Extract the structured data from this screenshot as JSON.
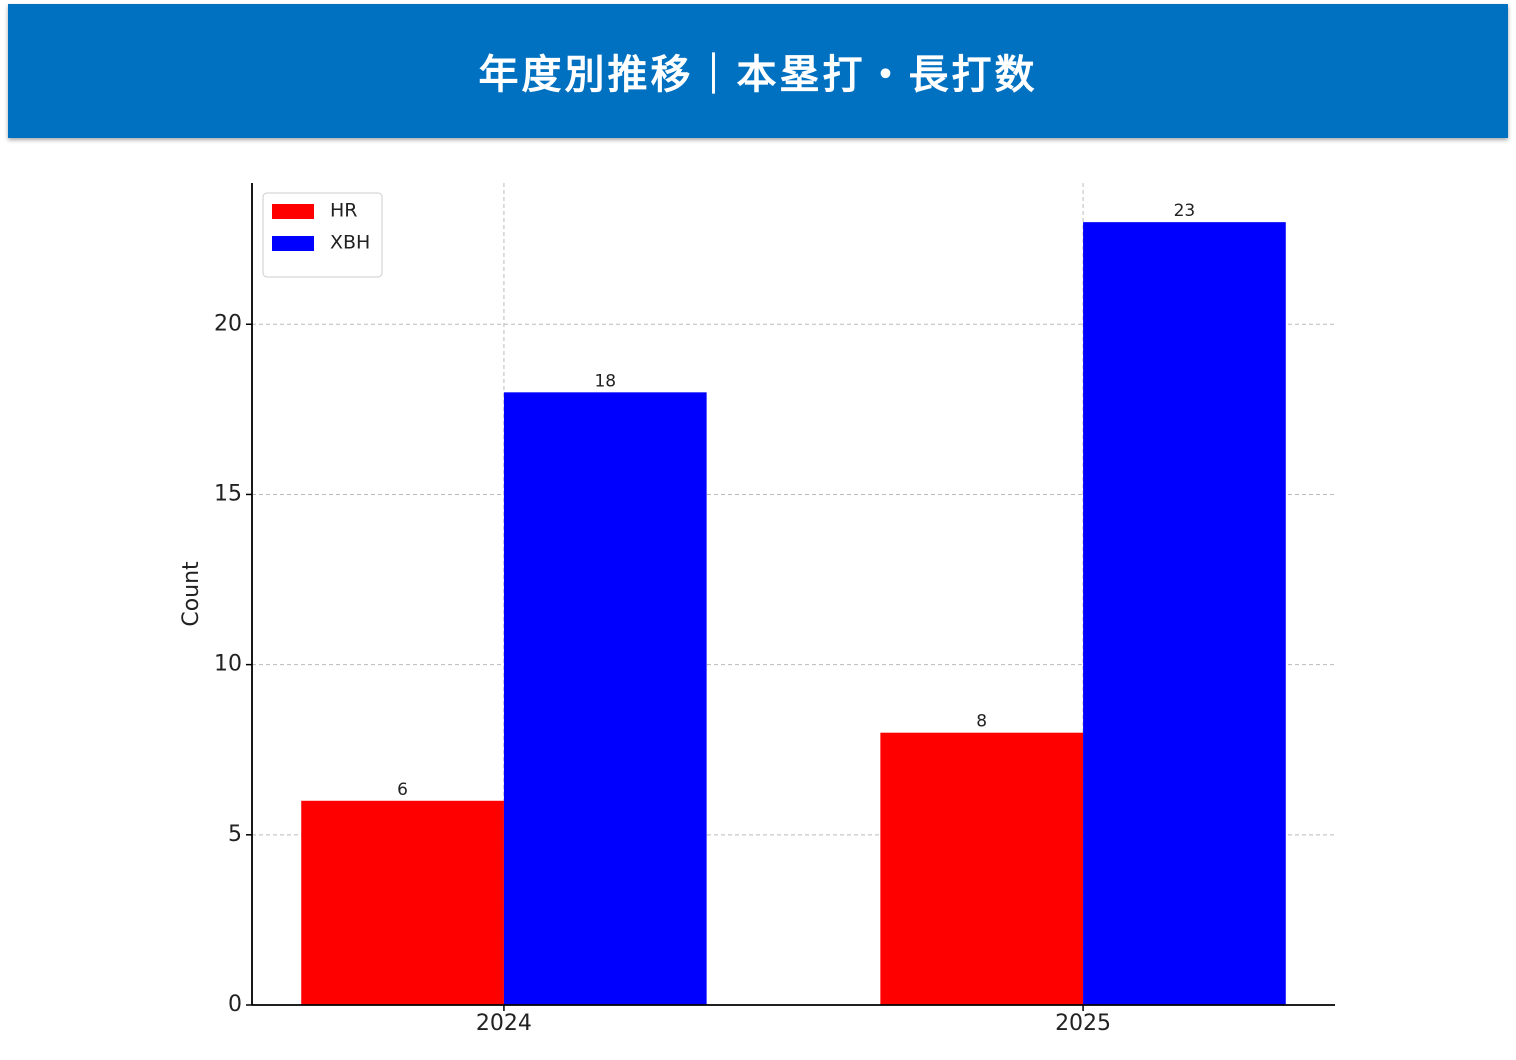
{
  "chart_data": {
    "type": "bar",
    "title": "年度別推移｜本塁打・長打数",
    "y_label": "Count",
    "categories": [
      "2024",
      "2025"
    ],
    "series": [
      {
        "name": "HR",
        "color": "#ff0000",
        "values": [
          6,
          8
        ]
      },
      {
        "name": "XBH",
        "color": "#0000ff",
        "values": [
          18,
          23
        ]
      }
    ],
    "ylim": [
      0,
      24.15
    ],
    "yticks": [
      0,
      5,
      10,
      15,
      20
    ],
    "grid": true,
    "legend": "upper-left"
  }
}
